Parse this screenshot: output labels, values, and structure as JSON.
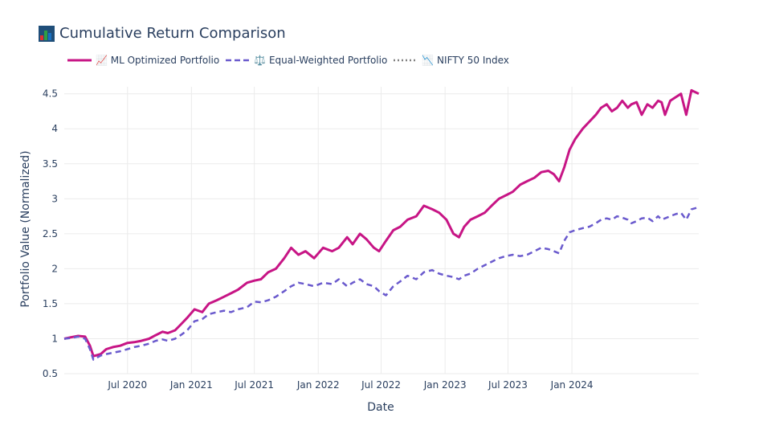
{
  "title": "Cumulative Return Comparison",
  "title_icon": "bar-chart-icon",
  "colors": {
    "ml": "#c71585",
    "equal": "#6a5acd",
    "nifty": "#808080",
    "grid": "#ebebeb",
    "text": "#2a3f5f"
  },
  "legend": [
    {
      "label": "📈 ML Optimized Portfolio",
      "style": "solid",
      "color": "#c71585"
    },
    {
      "label": "⚖️ Equal-Weighted Portfolio",
      "style": "dash",
      "color": "#6a5acd"
    },
    {
      "label": "📉 NIFTY 50 Index",
      "style": "dot",
      "color": "#808080"
    }
  ],
  "chart_data": {
    "type": "line",
    "title": "Cumulative Return Comparison",
    "xlabel": "Date",
    "ylabel": "Portfolio Value (Normalized)",
    "xlim": [
      "2020-01-01",
      "2024-12-31"
    ],
    "ylim": [
      0.5,
      4.6
    ],
    "grid": true,
    "legend_position": "top",
    "x_ticks": [
      "2020-07-01",
      "2021-01-01",
      "2021-07-01",
      "2022-01-01",
      "2022-07-01",
      "2023-01-01",
      "2023-07-01",
      "2024-01-01"
    ],
    "x_tick_labels": [
      "Jul 2020",
      "Jan 2021",
      "Jul 2021",
      "Jan 2022",
      "Jul 2022",
      "Jan 2023",
      "Jul 2023",
      "Jan 2024"
    ],
    "y_ticks": [
      0.5,
      1,
      1.5,
      2,
      2.5,
      3,
      3.5,
      4,
      4.5
    ],
    "y_tick_labels": [
      "0.5",
      "1",
      "1.5",
      "2",
      "2.5",
      "3",
      "3.5",
      "4",
      "4.5"
    ],
    "series": [
      {
        "name": "📈 ML Optimized Portfolio",
        "style": "solid",
        "x": [
          "2020-01-01",
          "2020-01-20",
          "2020-02-10",
          "2020-03-01",
          "2020-03-15",
          "2020-03-25",
          "2020-04-15",
          "2020-05-01",
          "2020-05-20",
          "2020-06-10",
          "2020-07-01",
          "2020-07-20",
          "2020-08-10",
          "2020-09-01",
          "2020-09-20",
          "2020-10-10",
          "2020-10-25",
          "2020-11-15",
          "2020-12-01",
          "2020-12-20",
          "2021-01-10",
          "2021-02-01",
          "2021-02-20",
          "2021-03-15",
          "2021-04-05",
          "2021-04-25",
          "2021-05-15",
          "2021-06-10",
          "2021-07-01",
          "2021-07-20",
          "2021-08-10",
          "2021-09-01",
          "2021-09-25",
          "2021-10-15",
          "2021-11-05",
          "2021-11-25",
          "2021-12-20",
          "2022-01-15",
          "2022-02-10",
          "2022-03-01",
          "2022-03-25",
          "2022-04-10",
          "2022-05-01",
          "2022-05-20",
          "2022-06-10",
          "2022-06-25",
          "2022-07-15",
          "2022-08-05",
          "2022-08-25",
          "2022-09-15",
          "2022-10-10",
          "2022-11-01",
          "2022-11-25",
          "2022-12-15",
          "2023-01-05",
          "2023-01-25",
          "2023-02-10",
          "2023-02-25",
          "2023-03-15",
          "2023-04-05",
          "2023-04-25",
          "2023-05-15",
          "2023-06-05",
          "2023-06-25",
          "2023-07-15",
          "2023-08-05",
          "2023-08-25",
          "2023-09-15",
          "2023-10-05",
          "2023-10-25",
          "2023-11-10",
          "2023-11-25",
          "2023-12-10",
          "2023-12-25",
          "2024-01-10",
          "2024-02-01",
          "2024-02-20",
          "2024-03-10",
          "2024-03-25",
          "2024-04-10",
          "2024-04-25",
          "2024-05-10",
          "2024-05-25",
          "2024-06-10",
          "2024-06-20",
          "2024-07-05",
          "2024-07-20",
          "2024-08-05",
          "2024-08-20",
          "2024-09-05",
          "2024-09-15",
          "2024-09-25",
          "2024-10-10",
          "2024-10-25",
          "2024-11-10",
          "2024-11-25",
          "2024-12-10",
          "2024-12-31"
        ],
        "values": [
          1.0,
          1.02,
          1.04,
          1.03,
          0.9,
          0.75,
          0.78,
          0.85,
          0.88,
          0.9,
          0.94,
          0.95,
          0.97,
          1.0,
          1.05,
          1.1,
          1.08,
          1.12,
          1.2,
          1.3,
          1.42,
          1.38,
          1.5,
          1.55,
          1.6,
          1.65,
          1.7,
          1.8,
          1.83,
          1.85,
          1.95,
          2.0,
          2.15,
          2.3,
          2.2,
          2.25,
          2.15,
          2.3,
          2.25,
          2.3,
          2.45,
          2.35,
          2.5,
          2.42,
          2.3,
          2.25,
          2.4,
          2.55,
          2.6,
          2.7,
          2.75,
          2.9,
          2.85,
          2.8,
          2.7,
          2.5,
          2.45,
          2.6,
          2.7,
          2.75,
          2.8,
          2.9,
          3.0,
          3.05,
          3.1,
          3.2,
          3.25,
          3.3,
          3.38,
          3.4,
          3.35,
          3.25,
          3.45,
          3.7,
          3.85,
          4.0,
          4.1,
          4.2,
          4.3,
          4.35,
          4.25,
          4.3,
          4.4,
          4.3,
          4.35,
          4.38,
          4.2,
          4.35,
          4.3,
          4.4,
          4.38,
          4.2,
          4.4,
          4.45,
          4.5,
          4.2,
          4.55,
          4.5
        ]
      },
      {
        "name": "⚖️ Equal-Weighted Portfolio",
        "style": "dash",
        "x": [
          "2020-01-01",
          "2020-01-20",
          "2020-02-10",
          "2020-03-01",
          "2020-03-15",
          "2020-03-25",
          "2020-04-15",
          "2020-05-01",
          "2020-05-20",
          "2020-06-10",
          "2020-07-01",
          "2020-07-20",
          "2020-08-10",
          "2020-09-01",
          "2020-09-20",
          "2020-10-10",
          "2020-10-25",
          "2020-11-15",
          "2020-12-01",
          "2020-12-20",
          "2021-01-10",
          "2021-02-01",
          "2021-02-20",
          "2021-03-15",
          "2021-04-05",
          "2021-04-25",
          "2021-05-15",
          "2021-06-10",
          "2021-07-01",
          "2021-07-20",
          "2021-08-10",
          "2021-09-01",
          "2021-09-25",
          "2021-10-15",
          "2021-11-05",
          "2021-11-25",
          "2021-12-20",
          "2022-01-15",
          "2022-02-10",
          "2022-03-01",
          "2022-03-25",
          "2022-04-10",
          "2022-05-01",
          "2022-05-20",
          "2022-06-10",
          "2022-06-25",
          "2022-07-15",
          "2022-08-05",
          "2022-08-25",
          "2022-09-15",
          "2022-10-10",
          "2022-11-01",
          "2022-11-25",
          "2022-12-15",
          "2023-01-05",
          "2023-01-25",
          "2023-02-10",
          "2023-02-25",
          "2023-03-15",
          "2023-04-05",
          "2023-04-25",
          "2023-05-15",
          "2023-06-05",
          "2023-06-25",
          "2023-07-15",
          "2023-08-05",
          "2023-08-25",
          "2023-09-15",
          "2023-10-05",
          "2023-10-25",
          "2023-11-10",
          "2023-11-25",
          "2023-12-10",
          "2023-12-25",
          "2024-01-10",
          "2024-02-01",
          "2024-02-20",
          "2024-03-10",
          "2024-03-25",
          "2024-04-10",
          "2024-04-25",
          "2024-05-10",
          "2024-05-25",
          "2024-06-10",
          "2024-06-20",
          "2024-07-05",
          "2024-07-20",
          "2024-08-05",
          "2024-08-20",
          "2024-09-05",
          "2024-09-15",
          "2024-09-25",
          "2024-10-10",
          "2024-10-25",
          "2024-11-10",
          "2024-11-25",
          "2024-12-10",
          "2024-12-31"
        ],
        "values": [
          1.0,
          1.01,
          1.03,
          1.0,
          0.85,
          0.7,
          0.76,
          0.78,
          0.8,
          0.82,
          0.85,
          0.88,
          0.9,
          0.93,
          0.97,
          0.99,
          0.97,
          1.0,
          1.05,
          1.12,
          1.25,
          1.28,
          1.35,
          1.38,
          1.4,
          1.38,
          1.42,
          1.45,
          1.53,
          1.52,
          1.55,
          1.6,
          1.68,
          1.75,
          1.8,
          1.78,
          1.75,
          1.8,
          1.78,
          1.85,
          1.75,
          1.8,
          1.85,
          1.78,
          1.75,
          1.68,
          1.62,
          1.75,
          1.82,
          1.9,
          1.85,
          1.95,
          1.98,
          1.93,
          1.9,
          1.88,
          1.85,
          1.9,
          1.93,
          2.0,
          2.05,
          2.1,
          2.15,
          2.18,
          2.2,
          2.18,
          2.2,
          2.25,
          2.3,
          2.28,
          2.25,
          2.22,
          2.4,
          2.52,
          2.55,
          2.58,
          2.6,
          2.65,
          2.7,
          2.72,
          2.7,
          2.75,
          2.73,
          2.7,
          2.65,
          2.68,
          2.72,
          2.73,
          2.68,
          2.75,
          2.7,
          2.72,
          2.75,
          2.78,
          2.8,
          2.7,
          2.85,
          2.88
        ]
      },
      {
        "name": "📉 NIFTY 50 Index",
        "style": "dot",
        "x": [],
        "values": []
      }
    ]
  }
}
